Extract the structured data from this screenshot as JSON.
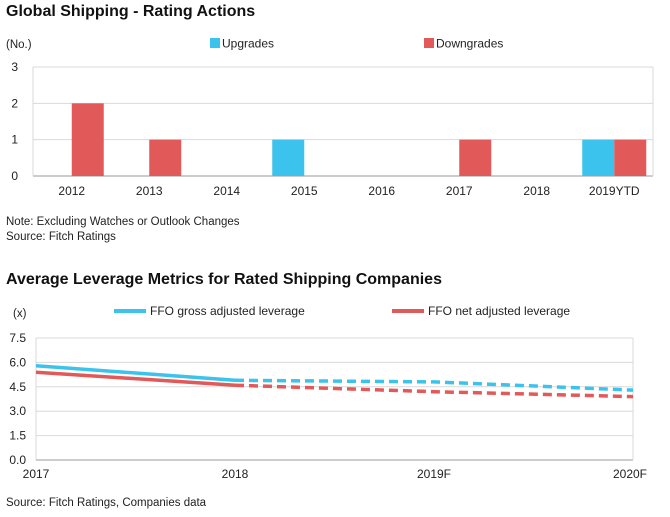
{
  "chart_data": [
    {
      "type": "bar",
      "title": "Global Shipping - Rating Actions",
      "unit_label": "(No.)",
      "categories": [
        "2012",
        "2013",
        "2014",
        "2015",
        "2016",
        "2017",
        "2018",
        "2019YTD"
      ],
      "series": [
        {
          "name": "Upgrades",
          "color": "#3bc3ee",
          "values": [
            0,
            0,
            0,
            1,
            0,
            0,
            0,
            1
          ]
        },
        {
          "name": "Downgrades",
          "color": "#e2595a",
          "values": [
            2,
            1,
            0,
            0,
            0,
            1,
            0,
            1
          ]
        }
      ],
      "ylim": [
        0,
        3
      ],
      "yticks": [
        "3",
        "2",
        "1",
        "0"
      ],
      "grid": true,
      "legend": "top",
      "notes": [
        "Note: Excluding Watches or Outlook Changes",
        "Source: Fitch Ratings"
      ]
    },
    {
      "type": "line",
      "title": "Average Leverage Metrics for Rated Shipping Companies",
      "unit_label": "(x)",
      "x": [
        "2017",
        "2018",
        "2019F",
        "2020F"
      ],
      "series": [
        {
          "name": "FFO gross adjusted leverage",
          "color": "#3bc3ee",
          "values": [
            5.8,
            4.9,
            4.8,
            4.3
          ],
          "solid_until": "2018",
          "dashed_after": "2018"
        },
        {
          "name": "FFO net adjusted leverage",
          "color": "#e2595a",
          "values": [
            5.4,
            4.6,
            4.2,
            3.9
          ],
          "solid_until": "2018",
          "dashed_after": "2018"
        }
      ],
      "ylim": [
        0,
        7.5
      ],
      "yticks": [
        "7.5",
        "6.0",
        "4.5",
        "3.0",
        "1.5",
        "0.0"
      ],
      "grid": true,
      "legend": "top",
      "notes": [
        "Source: Fitch Ratings, Companies data"
      ]
    }
  ]
}
